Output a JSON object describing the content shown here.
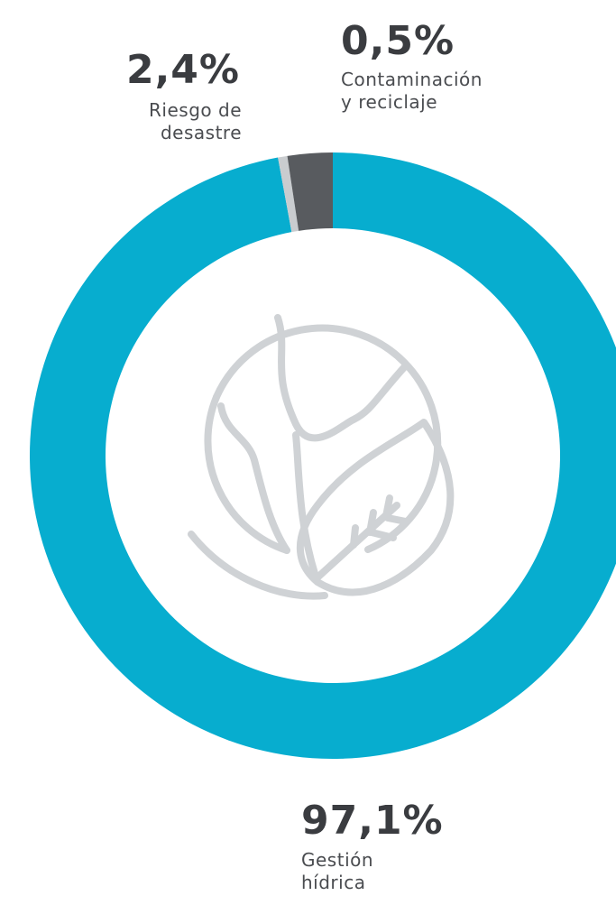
{
  "chart_data": {
    "type": "pie",
    "donut": true,
    "slices": [
      {
        "label_lines": [
          "Gestión",
          "hídrica"
        ],
        "value_label": "97,1%",
        "value": 97.1,
        "color": "#07adcf"
      },
      {
        "label_lines": [
          "Contaminación",
          "y reciclaje"
        ],
        "value_label": "0,5%",
        "value": 0.5,
        "color": "#c9cccf"
      },
      {
        "label_lines": [
          "Riesgo de",
          "desastre"
        ],
        "value_label": "2,4%",
        "value": 2.4,
        "color": "#585b5f"
      }
    ],
    "center_icon": "globe-leaf-icon"
  }
}
